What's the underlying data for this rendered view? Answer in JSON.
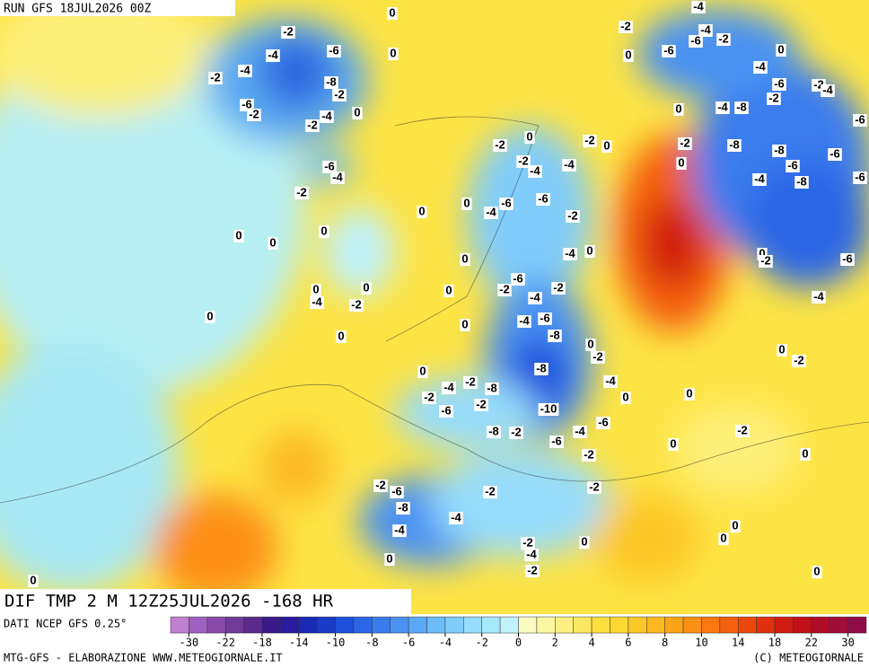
{
  "header": {
    "run": "RUN GFS 18JUL2026 00Z"
  },
  "map": {
    "title": "DIF TMP 2 M 12Z25JUL2026 -168 HR",
    "contour_labels": [
      0,
      -2,
      -4,
      -6,
      0,
      -2,
      -4,
      -8,
      -2,
      -6,
      -2,
      -4,
      -2,
      0,
      -6,
      -4,
      -2,
      0,
      0,
      0,
      0,
      0,
      -4,
      0,
      -2,
      0,
      0,
      0,
      0,
      0,
      -6,
      -4,
      -2,
      0,
      -2,
      -4,
      -4,
      -6,
      -2,
      -4,
      0,
      -6,
      -2,
      -4,
      -2,
      -6,
      -4,
      -8,
      0,
      -8,
      0,
      -2,
      -4,
      0,
      0,
      -2,
      -4,
      -2,
      -8,
      -6,
      -2,
      -10,
      -8,
      -2,
      -6,
      -4,
      -6,
      -2,
      0,
      0,
      -2,
      0,
      -2,
      -2,
      -2,
      -6,
      -8,
      -4,
      -4,
      -2,
      -4,
      -2,
      0,
      0,
      0,
      0,
      0,
      0,
      -2,
      0,
      -2,
      -8,
      0,
      -8,
      -6,
      -6,
      -6,
      -4,
      -8,
      -6,
      0,
      -2,
      -6,
      -4,
      0,
      -2,
      -2,
      -6,
      -6,
      -4,
      -2,
      -4,
      -4,
      -6,
      -2,
      -4,
      0,
      -4,
      -8,
      -2,
      0,
      0
    ]
  },
  "legend": {
    "source": "DATI NCEP GFS 0.25°",
    "colors": [
      "#c080d0",
      "#a060c0",
      "#8a4aaa",
      "#703a98",
      "#5a2a8c",
      "#3a1a8a",
      "#2a1aa0",
      "#1a2ab4",
      "#1a3ac8",
      "#1e50dc",
      "#2a66e6",
      "#3a7cee",
      "#4a92f2",
      "#5aa8f6",
      "#6cbcf8",
      "#80ccfa",
      "#96dcfc",
      "#a8e8fc",
      "#c0f2fc",
      "#fafcc0",
      "#fcf6a0",
      "#fcf080",
      "#fce860",
      "#fde040",
      "#fdd830",
      "#fcc828",
      "#fcb820",
      "#fca418",
      "#fc9014",
      "#fa7810",
      "#f4600e",
      "#ec480c",
      "#e0300c",
      "#d01c10",
      "#c01018",
      "#b00c28",
      "#a00c38",
      "#900c48"
    ],
    "ticks": [
      -30,
      -22,
      -18,
      -14,
      -10,
      -8,
      -6,
      -4,
      -2,
      0,
      2,
      4,
      6,
      8,
      10,
      14,
      18,
      22,
      30
    ]
  },
  "footer": {
    "left": "MTG-GFS - ELABORAZIONE WWW.METEOGIORNALE.IT",
    "right": "(C) METEOGIORNALE"
  }
}
